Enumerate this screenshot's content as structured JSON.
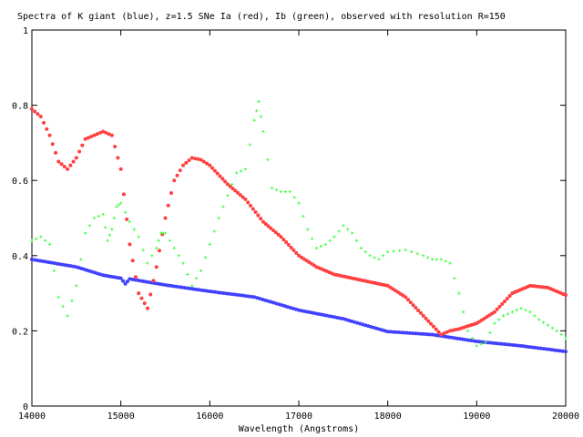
{
  "chart_data": {
    "type": "scatter",
    "title": "Spectra of K giant (blue), z=1.5 SNe Ia (red), Ib (green), observed with resolution R=150",
    "xlabel": "Wavelength (Angstroms)",
    "ylabel": "",
    "xlim": [
      14000,
      20000
    ],
    "ylim": [
      0,
      1
    ],
    "xticks": [
      14000,
      15000,
      16000,
      17000,
      18000,
      19000,
      20000
    ],
    "yticks": [
      0,
      0.2,
      0.4,
      0.6,
      0.8,
      1
    ],
    "xtick_labels": [
      "14000",
      "15000",
      "16000",
      "17000",
      "18000",
      "19000",
      "20000"
    ],
    "ytick_labels": [
      "0",
      "0.2",
      "0.4",
      "0.6",
      "0.8",
      "1"
    ],
    "grid": false,
    "legend": "none",
    "series": [
      {
        "color": "#4040ff",
        "marker": "dense",
        "x": [
          14000,
          14500,
          14800,
          15000,
          15050,
          15100,
          15500,
          16000,
          16500,
          17000,
          17500,
          18000,
          18500,
          19000,
          19500,
          20000
        ],
        "y": [
          0.39,
          0.37,
          0.348,
          0.34,
          0.325,
          0.338,
          0.322,
          0.305,
          0.29,
          0.255,
          0.232,
          0.198,
          0.19,
          0.172,
          0.16,
          0.145
        ]
      },
      {
        "color": "#ff4040",
        "marker": "dense",
        "x": [
          14000,
          14100,
          14200,
          14300,
          14400,
          14500,
          14600,
          14700,
          14800,
          14900,
          15000,
          15100,
          15200,
          15300,
          15400,
          15500,
          15600,
          15700,
          15800,
          15900,
          16000,
          16200,
          16400,
          16600,
          16800,
          17000,
          17200,
          17400,
          17600,
          17800,
          18000,
          18200,
          18400,
          18600,
          18700,
          18800,
          19000,
          19200,
          19400,
          19600,
          19800,
          20000
        ],
        "y": [
          0.79,
          0.77,
          0.72,
          0.65,
          0.63,
          0.66,
          0.71,
          0.72,
          0.73,
          0.72,
          0.63,
          0.43,
          0.3,
          0.26,
          0.37,
          0.5,
          0.6,
          0.64,
          0.66,
          0.655,
          0.64,
          0.59,
          0.55,
          0.49,
          0.45,
          0.4,
          0.37,
          0.35,
          0.34,
          0.33,
          0.32,
          0.29,
          0.24,
          0.19,
          0.2,
          0.205,
          0.22,
          0.25,
          0.3,
          0.32,
          0.315,
          0.295
        ]
      },
      {
        "color": "#40ff40",
        "marker": "plus",
        "x": [
          14000,
          14100,
          14200,
          14300,
          14400,
          14500,
          14600,
          14700,
          14800,
          14850,
          14900,
          14950,
          15000,
          15100,
          15200,
          15300,
          15400,
          15450,
          15500,
          15600,
          15700,
          15800,
          15900,
          16000,
          16100,
          16200,
          16300,
          16400,
          16500,
          16550,
          16600,
          16700,
          16800,
          16900,
          17000,
          17100,
          17200,
          17300,
          17400,
          17500,
          17600,
          17700,
          17800,
          17900,
          18000,
          18200,
          18400,
          18500,
          18600,
          18700,
          18800,
          18900,
          19000,
          19100,
          19200,
          19300,
          19400,
          19500,
          19600,
          19700,
          19800,
          19900,
          20000
        ],
        "y": [
          0.44,
          0.45,
          0.43,
          0.29,
          0.24,
          0.32,
          0.46,
          0.5,
          0.51,
          0.44,
          0.47,
          0.53,
          0.54,
          0.49,
          0.45,
          0.38,
          0.42,
          0.46,
          0.46,
          0.42,
          0.38,
          0.32,
          0.36,
          0.43,
          0.5,
          0.56,
          0.62,
          0.63,
          0.76,
          0.81,
          0.73,
          0.58,
          0.57,
          0.57,
          0.54,
          0.47,
          0.42,
          0.43,
          0.45,
          0.48,
          0.46,
          0.42,
          0.4,
          0.39,
          0.41,
          0.415,
          0.4,
          0.39,
          0.39,
          0.38,
          0.3,
          0.2,
          0.16,
          0.17,
          0.22,
          0.24,
          0.25,
          0.26,
          0.25,
          0.23,
          0.215,
          0.2,
          0.18
        ]
      }
    ]
  }
}
